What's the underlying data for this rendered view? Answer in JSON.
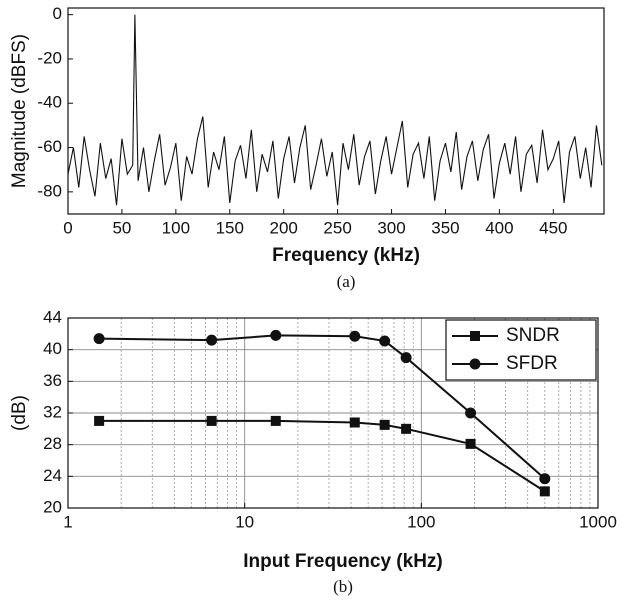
{
  "chart_data": [
    {
      "type": "line",
      "xlabel": "Frequency (kHz)",
      "ylabel": "Magnitude (dBFS)",
      "caption": "(a)",
      "color": "#111111",
      "grid": false,
      "xlim": [
        0,
        497
      ],
      "ylim": [
        -90,
        3
      ],
      "xticks": [
        0,
        50,
        100,
        150,
        200,
        250,
        300,
        350,
        400,
        450
      ],
      "yticks": [
        0,
        -20,
        -40,
        -60,
        -80
      ],
      "x": [
        0,
        5,
        10,
        15,
        20,
        25,
        30,
        35,
        40,
        45,
        50,
        55,
        60,
        62,
        65,
        70,
        75,
        80,
        85,
        90,
        95,
        100,
        105,
        110,
        115,
        120,
        125,
        130,
        135,
        140,
        145,
        150,
        155,
        160,
        165,
        170,
        175,
        180,
        185,
        190,
        195,
        200,
        205,
        210,
        215,
        220,
        225,
        230,
        235,
        240,
        245,
        250,
        255,
        260,
        265,
        270,
        275,
        280,
        285,
        290,
        295,
        300,
        305,
        310,
        315,
        320,
        325,
        330,
        335,
        340,
        345,
        350,
        355,
        360,
        365,
        370,
        375,
        380,
        385,
        390,
        395,
        400,
        405,
        410,
        415,
        420,
        425,
        430,
        435,
        440,
        445,
        450,
        455,
        460,
        465,
        470,
        475,
        480,
        485,
        490,
        495
      ],
      "values": [
        -72,
        -60,
        -78,
        -55,
        -70,
        -82,
        -58,
        -74,
        -65,
        -86,
        -56,
        -72,
        -68,
        0,
        -75,
        -60,
        -80,
        -66,
        -54,
        -77,
        -69,
        -58,
        -84,
        -64,
        -72,
        -56,
        -46,
        -78,
        -62,
        -70,
        -55,
        -85,
        -66,
        -59,
        -74,
        -52,
        -80,
        -63,
        -71,
        -57,
        -83,
        -65,
        -55,
        -76,
        -60,
        -50,
        -79,
        -68,
        -56,
        -73,
        -62,
        -86,
        -58,
        -70,
        -54,
        -77,
        -64,
        -57,
        -81,
        -66,
        -55,
        -72,
        -60,
        -48,
        -78,
        -63,
        -58,
        -74,
        -55,
        -84,
        -66,
        -58,
        -71,
        -53,
        -79,
        -64,
        -57,
        -75,
        -61,
        -54,
        -83,
        -67,
        -58,
        -72,
        -55,
        -80,
        -63,
        -59,
        -76,
        -52,
        -70,
        -65,
        -57,
        -85,
        -62,
        -55,
        -74,
        -60,
        -78,
        -50,
        -68
      ]
    },
    {
      "type": "line",
      "xlabel": "Input Frequency (kHz)",
      "ylabel": "(dB)",
      "caption": "(b)",
      "log_x": true,
      "grid": true,
      "legend": "upper right",
      "xlim": [
        1,
        1000
      ],
      "ylim": [
        20,
        44
      ],
      "xticks": [
        1,
        10,
        100,
        1000
      ],
      "yticks": [
        20,
        24,
        28,
        32,
        36,
        40,
        44
      ],
      "x": [
        1.5,
        6.5,
        15,
        42,
        62,
        82,
        190,
        500
      ],
      "series": [
        {
          "name": "SNDR",
          "color": "#111111",
          "marker": "square",
          "values": [
            31,
            31,
            31,
            30.8,
            30.5,
            30,
            28.1,
            22.1
          ]
        },
        {
          "name": "SFDR",
          "color": "#111111",
          "marker": "circle",
          "values": [
            41.4,
            41.2,
            41.8,
            41.7,
            41.1,
            39,
            32,
            23.7
          ]
        }
      ]
    }
  ]
}
